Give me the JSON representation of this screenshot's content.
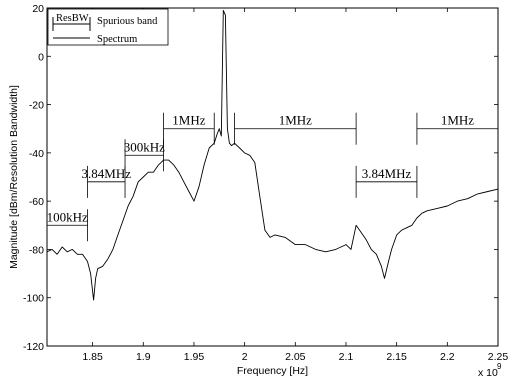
{
  "chart_data": {
    "type": "line",
    "title": "",
    "xlabel": "Frequency [Hz]",
    "ylabel": "Magnitude [dBm/Resolution Bandwidth]",
    "x_exponent_label": "x 10",
    "x_exponent_power": "9",
    "xlim": [
      1.805,
      2.25
    ],
    "ylim": [
      -120,
      20
    ],
    "grid": false,
    "legend_position": "top-left",
    "x_ticks": [
      {
        "value": 1.85,
        "label": "1.85"
      },
      {
        "value": 1.9,
        "label": "1.9"
      },
      {
        "value": 1.95,
        "label": "1.95"
      },
      {
        "value": 2.0,
        "label": "2"
      },
      {
        "value": 2.05,
        "label": "2.05"
      },
      {
        "value": 2.1,
        "label": "2.1"
      },
      {
        "value": 2.15,
        "label": "2.15"
      },
      {
        "value": 2.2,
        "label": "2.2"
      },
      {
        "value": 2.25,
        "label": "2.25"
      }
    ],
    "y_ticks": [
      {
        "value": 20,
        "label": "20"
      },
      {
        "value": 0,
        "label": "0"
      },
      {
        "value": -20,
        "label": "-20"
      },
      {
        "value": -40,
        "label": "-40"
      },
      {
        "value": -60,
        "label": "-60"
      },
      {
        "value": -80,
        "label": "-80"
      },
      {
        "value": -100,
        "label": "-100"
      },
      {
        "value": -120,
        "label": "-120"
      }
    ],
    "legend": [
      {
        "label": "Spurious band",
        "symbol_text": "ResBW"
      },
      {
        "label": "Spectrum"
      }
    ],
    "spurious_bands": [
      {
        "x_start": 1.805,
        "x_end": 1.845,
        "level": -70,
        "label": "100kHz"
      },
      {
        "x_start": 1.845,
        "x_end": 1.882,
        "level": -52,
        "label": "3.84MHz"
      },
      {
        "x_start": 1.882,
        "x_end": 1.92,
        "level": -41,
        "label": "300kHz"
      },
      {
        "x_start": 1.92,
        "x_end": 1.97,
        "level": -30,
        "label": "1MHz"
      },
      {
        "x_start": 1.99,
        "x_end": 2.11,
        "level": -30,
        "label": "1MHz"
      },
      {
        "x_start": 2.11,
        "x_end": 2.17,
        "level": -52,
        "label": "3.84MHz"
      },
      {
        "x_start": 2.17,
        "x_end": 2.25,
        "level": -30,
        "label": "1MHz"
      }
    ],
    "series": [
      {
        "x": [
          1.805,
          1.81,
          1.815,
          1.82,
          1.825,
          1.83,
          1.835,
          1.84,
          1.845,
          1.848,
          1.851,
          1.853,
          1.855,
          1.86,
          1.865,
          1.87,
          1.875,
          1.88,
          1.885,
          1.89,
          1.895,
          1.9,
          1.905,
          1.91,
          1.915,
          1.92,
          1.925,
          1.93,
          1.935,
          1.94,
          1.945,
          1.95,
          1.955,
          1.96,
          1.965,
          1.97,
          1.973,
          1.975,
          1.977,
          1.979,
          1.981,
          1.983,
          1.985,
          1.987,
          1.99,
          1.995,
          2.0,
          2.005,
          2.01,
          2.015,
          2.02,
          2.025,
          2.03,
          2.04,
          2.05,
          2.06,
          2.07,
          2.08,
          2.09,
          2.1,
          2.105,
          2.11,
          2.115,
          2.12,
          2.125,
          2.13,
          2.135,
          2.138,
          2.142,
          2.145,
          2.15,
          2.155,
          2.16,
          2.165,
          2.17,
          2.175,
          2.18,
          2.19,
          2.2,
          2.21,
          2.22,
          2.23,
          2.24,
          2.25
        ],
        "y": [
          -81,
          -80,
          -82,
          -79,
          -81,
          -80,
          -82,
          -82,
          -85,
          -90,
          -101,
          -92,
          -88,
          -87,
          -84,
          -80,
          -74,
          -68,
          -62,
          -58,
          -52,
          -50,
          -48,
          -48,
          -45,
          -43,
          -43,
          -45,
          -48,
          -52,
          -56,
          -60,
          -54,
          -45,
          -38,
          -36,
          -32,
          -30,
          -33,
          19,
          17,
          -30,
          -36,
          -37,
          -36,
          -38,
          -40,
          -41,
          -44,
          -58,
          -72,
          -75,
          -74,
          -75,
          -78,
          -78,
          -80,
          -81,
          -80,
          -78,
          -80,
          -70,
          -73,
          -76,
          -80,
          -82,
          -87,
          -92,
          -85,
          -80,
          -74,
          -72,
          -71,
          -70,
          -67,
          -65,
          -64,
          -63,
          -62,
          -60,
          -59,
          -57,
          -56,
          -55
        ]
      }
    ]
  }
}
